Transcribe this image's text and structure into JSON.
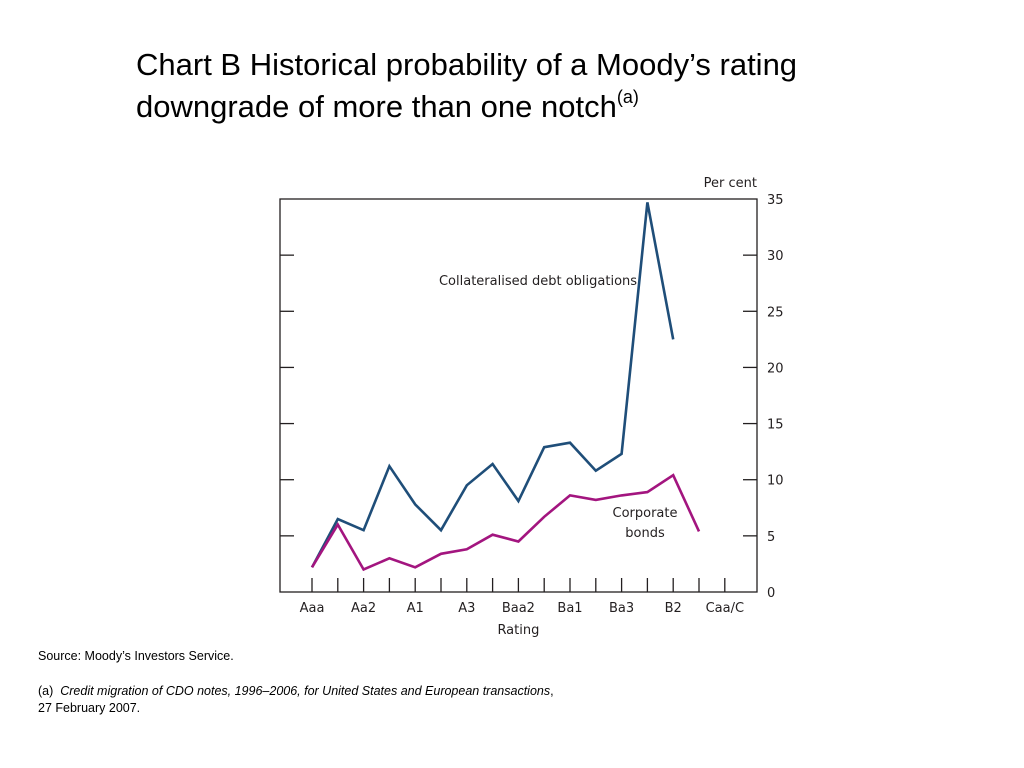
{
  "slide": {
    "title_line1": "Chart B  Historical probability of a Moody’s rating",
    "title_line2": "downgrade of more than one notch",
    "title_footnote_marker": "(a)",
    "source": "Source:  Moody’s Investors Service.",
    "footnote": {
      "marker": "(a)",
      "text": "Credit migration of CDO notes, 1996–2006, for United States and European transactions",
      "text_tail": ",",
      "line2": "27 February 2007."
    }
  },
  "colors": {
    "cdo": "#1f4e79",
    "corporate": "#a3157f",
    "axis": "#231f20"
  },
  "chart_data": {
    "type": "line",
    "title": "",
    "xlabel": "Rating",
    "ylabel": "Per cent",
    "ylim": [
      0,
      35
    ],
    "yticks": [
      0,
      5,
      10,
      15,
      20,
      25,
      30,
      35
    ],
    "y_axis_side": "right",
    "grid": false,
    "categories": [
      "Aaa",
      "Aa1",
      "Aa2",
      "Aa3",
      "A1",
      "A2",
      "A3",
      "Baa1",
      "Baa2",
      "Baa3",
      "Ba1",
      "Ba2",
      "Ba3",
      "B1",
      "B2",
      "B3",
      "Caa/C"
    ],
    "category_labels_shown": [
      "Aaa",
      "",
      "Aa2",
      "",
      "A1",
      "",
      "A3",
      "",
      "Baa2",
      "",
      "Ba1",
      "",
      "Ba3",
      "",
      "B2",
      "",
      "Caa/C"
    ],
    "series": [
      {
        "name": "Collateralised debt obligations",
        "values": [
          2.2,
          6.5,
          5.5,
          11.2,
          7.8,
          5.5,
          9.5,
          11.4,
          8.1,
          12.9,
          13.3,
          10.8,
          12.3,
          34.7,
          22.5,
          null,
          null
        ]
      },
      {
        "name": "Corporate bonds",
        "values": [
          2.2,
          6.0,
          2.0,
          3.0,
          2.2,
          3.4,
          3.8,
          5.1,
          4.5,
          6.7,
          8.6,
          8.2,
          8.6,
          8.9,
          10.4,
          5.4,
          null
        ]
      }
    ],
    "annotations": [
      {
        "text": "Collateralised debt obligations",
        "series": 0
      },
      {
        "text_line1": "Corporate",
        "text_line2": "bonds",
        "series": 1
      }
    ]
  }
}
